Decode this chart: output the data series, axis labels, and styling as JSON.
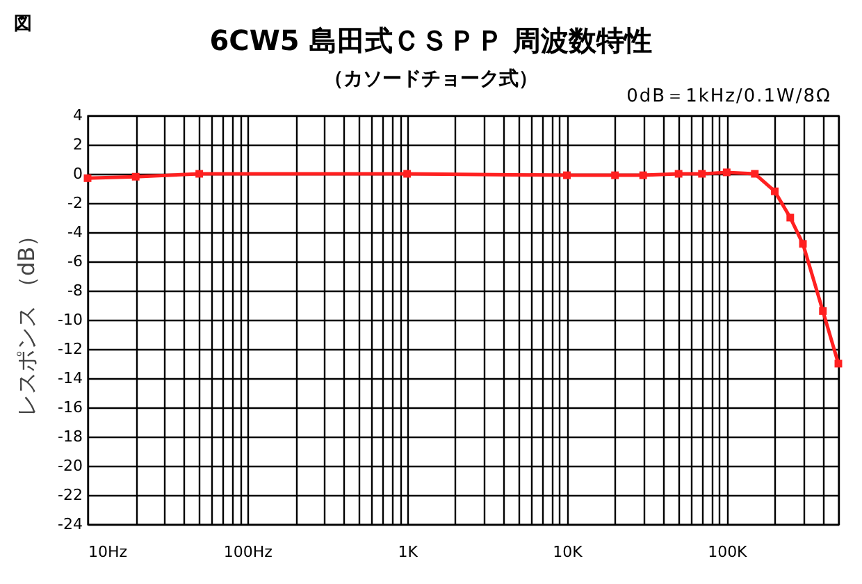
{
  "chart_data": {
    "type": "line",
    "title": "6CW5 島田式ＣＳＰＰ 周波数特性",
    "subtitle": "（カソードチョーク式）",
    "ylabel": "レスポンス （dB）",
    "annotations": [
      "図",
      "0dB＝1kHz/0.1W/8Ω"
    ],
    "x": [
      10,
      20,
      50,
      1000,
      10000,
      20000,
      30000,
      50000,
      70000,
      100000,
      150000,
      200000,
      250000,
      300000,
      400000,
      500000
    ],
    "series": [
      {
        "color": "#ff2020",
        "values": [
          -0.3,
          -0.2,
          0,
          0,
          -0.1,
          -0.1,
          -0.1,
          0,
          0,
          0.1,
          0,
          -1.2,
          -3,
          -4.8,
          -9.4,
          -13
        ]
      }
    ],
    "log": "x",
    "xlim": [
      10,
      500000
    ],
    "xticks": [
      {
        "value": 10,
        "label": "10Hz"
      },
      {
        "value": 20,
        "label": null
      },
      {
        "value": 30,
        "label": null
      },
      {
        "value": 40,
        "label": null
      },
      {
        "value": 50,
        "label": null
      },
      {
        "value": 60,
        "label": null
      },
      {
        "value": 70,
        "label": null
      },
      {
        "value": 80,
        "label": null
      },
      {
        "value": 90,
        "label": null
      },
      {
        "value": 100,
        "label": "100Hz"
      },
      {
        "value": 200,
        "label": null
      },
      {
        "value": 300,
        "label": null
      },
      {
        "value": 400,
        "label": null
      },
      {
        "value": 500,
        "label": null
      },
      {
        "value": 600,
        "label": null
      },
      {
        "value": 700,
        "label": null
      },
      {
        "value": 800,
        "label": null
      },
      {
        "value": 900,
        "label": null
      },
      {
        "value": 1000,
        "label": "1K"
      },
      {
        "value": 2000,
        "label": null
      },
      {
        "value": 3000,
        "label": null
      },
      {
        "value": 4000,
        "label": null
      },
      {
        "value": 5000,
        "label": null
      },
      {
        "value": 6000,
        "label": null
      },
      {
        "value": 7000,
        "label": null
      },
      {
        "value": 8000,
        "label": null
      },
      {
        "value": 9000,
        "label": null
      },
      {
        "value": 10000,
        "label": "10K"
      },
      {
        "value": 20000,
        "label": null
      },
      {
        "value": 30000,
        "label": null
      },
      {
        "value": 40000,
        "label": null
      },
      {
        "value": 50000,
        "label": null
      },
      {
        "value": 60000,
        "label": null
      },
      {
        "value": 70000,
        "label": null
      },
      {
        "value": 80000,
        "label": null
      },
      {
        "value": 90000,
        "label": null
      },
      {
        "value": 100000,
        "label": "100K"
      },
      {
        "value": 200000,
        "label": null
      },
      {
        "value": 300000,
        "label": null
      },
      {
        "value": 400000,
        "label": null
      },
      {
        "value": 500000,
        "label": null
      }
    ],
    "ylim": [
      -24,
      4
    ],
    "yticks": [
      -24,
      -22,
      -20,
      -18,
      -16,
      -14,
      -12,
      -10,
      -8,
      -6,
      -4,
      -2,
      0,
      2,
      4
    ],
    "grid": true,
    "marker": "square",
    "line_style": "solid"
  }
}
